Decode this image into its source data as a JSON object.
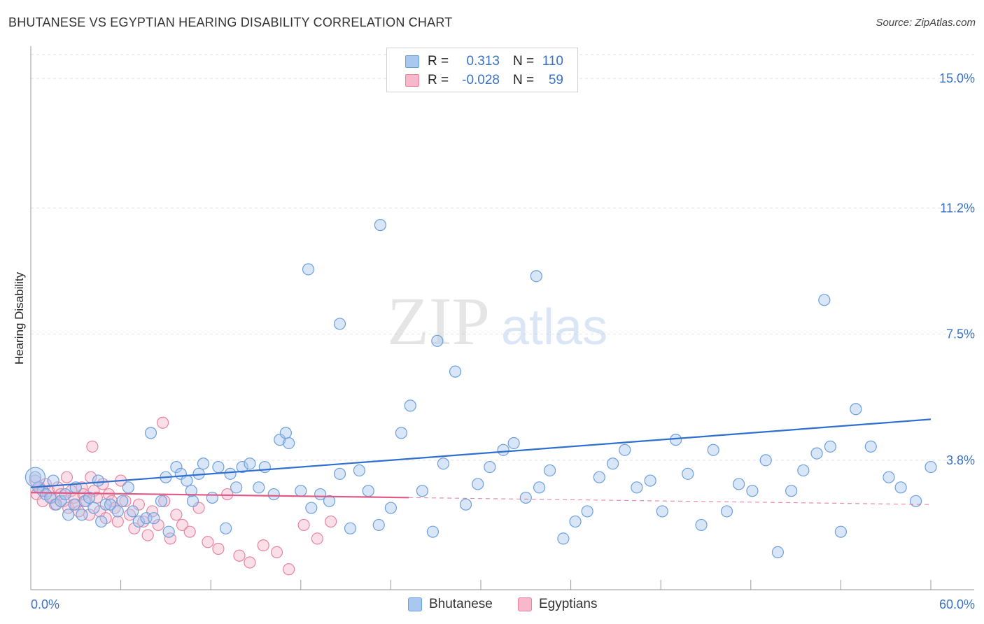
{
  "title": "BHUTANESE VS EGYPTIAN HEARING DISABILITY CORRELATION CHART",
  "source": "Source: ZipAtlas.com",
  "watermark": {
    "part1": "ZIP",
    "part2": "atlas"
  },
  "legend": {
    "rows": [
      {
        "r_label": "R =",
        "r_value": "0.313",
        "n_label": "N =",
        "n_value": "110",
        "color": "#a9c8f0",
        "border": "#6c9fdc"
      },
      {
        "r_label": "R =",
        "r_value": "-0.028",
        "n_label": "N =",
        "n_value": "59",
        "color": "#f7b8cb",
        "border": "#e8849f"
      }
    ]
  },
  "bottom_legend": [
    {
      "label": "Bhutanese",
      "color": "#a9c8f0",
      "border": "#6c9fdc"
    },
    {
      "label": "Egyptians",
      "color": "#f7b8cb",
      "border": "#e8849f"
    }
  ],
  "chart_data": {
    "type": "scatter",
    "title": "BHUTANESE VS EGYPTIAN HEARING DISABILITY CORRELATION CHART",
    "xlabel": "",
    "ylabel": "Hearing Disability",
    "xlim": [
      0,
      60
    ],
    "ylim": [
      0,
      15.7
    ],
    "x_tick_labels": [
      "0.0%",
      "60.0%"
    ],
    "y_ticks": [
      3.8,
      7.5,
      11.2,
      15.0
    ],
    "y_tick_labels": [
      "3.8%",
      "7.5%",
      "11.2%",
      "15.0%"
    ],
    "grid": true,
    "legend_position": "top-center",
    "colors": {
      "bhutanese_line": "#2f6fd0",
      "egyptians_line": "#e05a86",
      "tick_label": "#3a72c4"
    },
    "series": [
      {
        "name": "Bhutanese",
        "color": "#6c9fdc",
        "fill": "#a9c8f0",
        "trend": {
          "x": [
            0,
            60
          ],
          "y": [
            3.0,
            5.0
          ]
        },
        "points": [
          [
            0.3,
            3.3
          ],
          [
            0.8,
            2.9
          ],
          [
            1.0,
            2.8
          ],
          [
            1.3,
            2.7
          ],
          [
            1.7,
            2.5
          ],
          [
            2.0,
            2.6
          ],
          [
            2.3,
            2.8
          ],
          [
            2.9,
            2.5
          ],
          [
            3.4,
            2.2
          ],
          [
            3.6,
            2.6
          ],
          [
            3.9,
            2.7
          ],
          [
            4.2,
            2.4
          ],
          [
            4.7,
            2.0
          ],
          [
            5.0,
            2.5
          ],
          [
            5.3,
            2.5
          ],
          [
            5.8,
            2.3
          ],
          [
            6.1,
            2.6
          ],
          [
            6.8,
            2.3
          ],
          [
            7.2,
            2.0
          ],
          [
            7.7,
            2.1
          ],
          [
            8.0,
            4.6
          ],
          [
            8.2,
            2.1
          ],
          [
            8.7,
            2.6
          ],
          [
            9.2,
            1.7
          ],
          [
            9.7,
            3.6
          ],
          [
            10.0,
            3.4
          ],
          [
            10.4,
            3.2
          ],
          [
            10.8,
            2.6
          ],
          [
            11.2,
            3.4
          ],
          [
            11.5,
            3.7
          ],
          [
            12.1,
            2.7
          ],
          [
            12.5,
            3.6
          ],
          [
            13.0,
            1.8
          ],
          [
            13.3,
            3.4
          ],
          [
            13.7,
            3.0
          ],
          [
            14.1,
            3.6
          ],
          [
            14.6,
            3.7
          ],
          [
            15.2,
            3.0
          ],
          [
            15.6,
            3.6
          ],
          [
            16.2,
            2.8
          ],
          [
            16.6,
            4.4
          ],
          [
            17.2,
            4.3
          ],
          [
            18.0,
            2.9
          ],
          [
            18.7,
            2.4
          ],
          [
            19.3,
            2.8
          ],
          [
            19.9,
            2.6
          ],
          [
            20.6,
            3.4
          ],
          [
            21.3,
            1.8
          ],
          [
            21.9,
            3.5
          ],
          [
            22.5,
            2.9
          ],
          [
            23.2,
            1.9
          ],
          [
            24.0,
            2.4
          ],
          [
            24.7,
            4.6
          ],
          [
            25.3,
            5.4
          ],
          [
            26.1,
            2.9
          ],
          [
            26.8,
            1.7
          ],
          [
            27.5,
            3.7
          ],
          [
            28.3,
            6.4
          ],
          [
            29.0,
            2.5
          ],
          [
            29.8,
            3.1
          ],
          [
            30.6,
            3.6
          ],
          [
            31.5,
            4.1
          ],
          [
            32.2,
            4.3
          ],
          [
            33.0,
            2.7
          ],
          [
            33.9,
            3.0
          ],
          [
            34.6,
            3.5
          ],
          [
            35.5,
            1.5
          ],
          [
            36.3,
            2.0
          ],
          [
            37.1,
            2.3
          ],
          [
            37.9,
            3.3
          ],
          [
            38.8,
            3.7
          ],
          [
            39.6,
            4.1
          ],
          [
            40.4,
            3.0
          ],
          [
            41.3,
            3.2
          ],
          [
            42.1,
            2.3
          ],
          [
            43.0,
            4.4
          ],
          [
            43.8,
            3.4
          ],
          [
            44.7,
            1.9
          ],
          [
            45.5,
            4.1
          ],
          [
            46.4,
            2.3
          ],
          [
            47.2,
            3.1
          ],
          [
            48.1,
            2.9
          ],
          [
            49.0,
            3.8
          ],
          [
            49.8,
            1.1
          ],
          [
            50.7,
            2.9
          ],
          [
            51.5,
            3.5
          ],
          [
            52.4,
            4.0
          ],
          [
            53.3,
            4.2
          ],
          [
            54.0,
            1.7
          ],
          [
            55.0,
            5.3
          ],
          [
            56.0,
            4.2
          ],
          [
            57.2,
            3.3
          ],
          [
            58.0,
            3.0
          ],
          [
            59.0,
            2.6
          ],
          [
            60.0,
            3.6
          ],
          [
            0.5,
            3.0
          ],
          [
            1.5,
            3.2
          ],
          [
            2.5,
            2.2
          ],
          [
            3.0,
            3.0
          ],
          [
            4.5,
            3.2
          ],
          [
            6.5,
            3.0
          ],
          [
            9.0,
            3.3
          ],
          [
            10.7,
            2.9
          ],
          [
            17.0,
            4.6
          ],
          [
            18.5,
            9.4
          ],
          [
            20.6,
            7.8
          ],
          [
            23.3,
            10.7
          ],
          [
            27.1,
            7.3
          ],
          [
            33.7,
            9.2
          ],
          [
            52.9,
            8.5
          ]
        ]
      },
      {
        "name": "Egyptians",
        "color": "#e8849f",
        "fill": "#f7b8cb",
        "trend": {
          "x": [
            0,
            60
          ],
          "y": [
            2.85,
            2.5
          ]
        },
        "points": [
          [
            0.3,
            3.2
          ],
          [
            0.4,
            2.8
          ],
          [
            0.6,
            3.0
          ],
          [
            0.8,
            2.6
          ],
          [
            1.0,
            3.1
          ],
          [
            1.2,
            2.9
          ],
          [
            1.4,
            2.7
          ],
          [
            1.6,
            2.5
          ],
          [
            1.8,
            3.0
          ],
          [
            2.0,
            2.8
          ],
          [
            2.2,
            2.6
          ],
          [
            2.4,
            3.3
          ],
          [
            2.5,
            2.4
          ],
          [
            2.7,
            2.9
          ],
          [
            2.9,
            2.7
          ],
          [
            3.0,
            2.5
          ],
          [
            3.2,
            2.3
          ],
          [
            3.4,
            3.0
          ],
          [
            3.5,
            2.8
          ],
          [
            3.7,
            2.6
          ],
          [
            3.9,
            2.2
          ],
          [
            4.0,
            3.3
          ],
          [
            4.2,
            2.9
          ],
          [
            4.4,
            2.7
          ],
          [
            4.6,
            2.3
          ],
          [
            4.8,
            3.1
          ],
          [
            5.0,
            2.1
          ],
          [
            5.2,
            2.8
          ],
          [
            5.4,
            2.6
          ],
          [
            5.6,
            2.4
          ],
          [
            5.8,
            2.0
          ],
          [
            6.0,
            3.2
          ],
          [
            6.3,
            2.6
          ],
          [
            6.6,
            2.2
          ],
          [
            6.9,
            1.8
          ],
          [
            7.2,
            2.5
          ],
          [
            7.5,
            2.0
          ],
          [
            7.8,
            1.6
          ],
          [
            8.1,
            2.3
          ],
          [
            8.5,
            1.9
          ],
          [
            8.9,
            2.6
          ],
          [
            9.3,
            1.5
          ],
          [
            9.7,
            2.2
          ],
          [
            10.1,
            1.9
          ],
          [
            10.6,
            1.7
          ],
          [
            11.2,
            2.4
          ],
          [
            11.8,
            1.4
          ],
          [
            12.5,
            1.2
          ],
          [
            13.1,
            2.8
          ],
          [
            13.9,
            1.0
          ],
          [
            14.6,
            0.8
          ],
          [
            15.5,
            1.3
          ],
          [
            16.4,
            1.1
          ],
          [
            17.2,
            0.6
          ],
          [
            18.2,
            1.9
          ],
          [
            19.1,
            1.5
          ],
          [
            20.0,
            2.0
          ],
          [
            4.1,
            4.2
          ],
          [
            8.8,
            4.9
          ]
        ]
      }
    ]
  }
}
